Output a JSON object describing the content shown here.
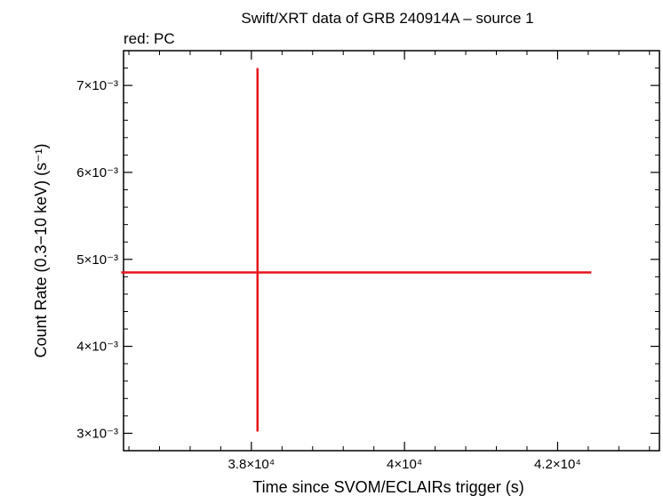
{
  "chart_data": {
    "type": "scatter",
    "title": "Swift/XRT data of GRB 240914A – source 1",
    "subtitle": "red: PC",
    "xlabel": "Time since SVOM/ECLAIRs trigger (s)",
    "ylabel": "Count Rate (0.3−10 keV) (s⁻¹)",
    "xscale": "linear",
    "yscale": "linear",
    "xlim": [
      36330,
      43330
    ],
    "ylim": [
      0.0028,
      0.0074
    ],
    "xticks": [
      {
        "value": 38000,
        "label": "3.8×10⁴"
      },
      {
        "value": 40000,
        "label": "4×10⁴"
      },
      {
        "value": 42000,
        "label": "4.2×10⁴"
      }
    ],
    "yticks": [
      {
        "value": 0.003,
        "label": "3×10⁻³"
      },
      {
        "value": 0.004,
        "label": "4×10⁻³"
      },
      {
        "value": 0.005,
        "label": "5×10⁻³"
      },
      {
        "value": 0.006,
        "label": "6×10⁻³"
      },
      {
        "value": 0.007,
        "label": "7×10⁻³"
      }
    ],
    "series": [
      {
        "color": "#e8141c",
        "points": [
          {
            "x": 38080,
            "y": 0.00485,
            "xerr_minus": 1780,
            "xerr_plus": 4360,
            "yerr_minus": 0.00183,
            "yerr_plus": 0.00235
          }
        ]
      }
    ],
    "grid": false,
    "legend": "none"
  }
}
